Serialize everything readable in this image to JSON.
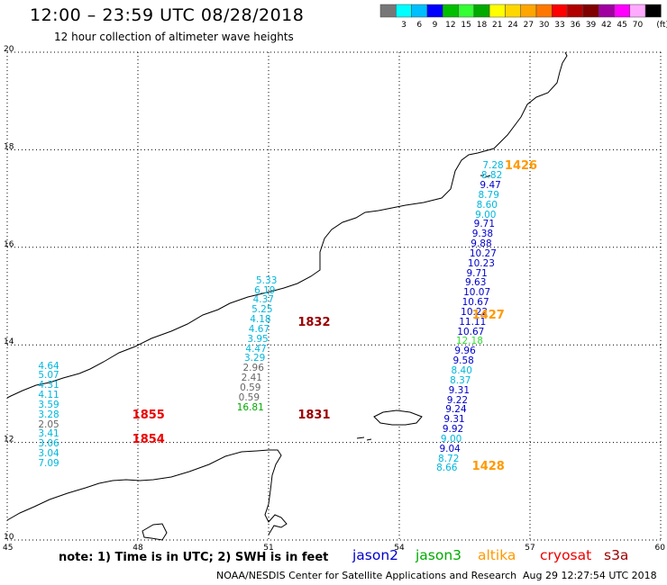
{
  "header": {
    "title": "12:00 – 23:59 UTC 08/28/2018",
    "subtitle": "12 hour collection of altimeter wave heights"
  },
  "scale": {
    "unit": "(ft)",
    "bins": [
      {
        "label": "",
        "color": "#777777"
      },
      {
        "label": "3",
        "color": "#00ffff"
      },
      {
        "label": "6",
        "color": "#00bfff"
      },
      {
        "label": "9",
        "color": "#0000ff"
      },
      {
        "label": "12",
        "color": "#00bf00"
      },
      {
        "label": "15",
        "color": "#33ff33"
      },
      {
        "label": "18",
        "color": "#00aa00"
      },
      {
        "label": "21",
        "color": "#ffff00"
      },
      {
        "label": "24",
        "color": "#ffd700"
      },
      {
        "label": "27",
        "color": "#ffa500"
      },
      {
        "label": "30",
        "color": "#ff7700"
      },
      {
        "label": "33",
        "color": "#ff0000"
      },
      {
        "label": "36",
        "color": "#b00000"
      },
      {
        "label": "39",
        "color": "#800000"
      },
      {
        "label": "42",
        "color": "#a000a0"
      },
      {
        "label": "45",
        "color": "#ff00ff"
      },
      {
        "label": "70",
        "color": "#ffaaff"
      },
      {
        "label": "",
        "color": "#000000"
      }
    ]
  },
  "map": {
    "lon_range": [
      45,
      60
    ],
    "lat_range": [
      10,
      20
    ],
    "x_ticks": [
      "45",
      "48",
      "51",
      "54",
      "57",
      "60"
    ],
    "y_ticks": [
      "20",
      "18",
      "16",
      "14",
      "12",
      "10"
    ]
  },
  "colors": {
    "jason2": "#0000cc",
    "jason3": "#00aa00",
    "altika": "#ff9900",
    "cryosat": "#ee0000",
    "s3a": "#990000",
    "gray": "#666666",
    "cyan": "#00b7dd",
    "lightgreen": "#33dd33",
    "black": "#000000"
  },
  "wave_heights": [
    {
      "text": "7.28",
      "c": "cyan",
      "lon": 56.2,
      "lat": 17.65
    },
    {
      "text": "8.82",
      "c": "cyan",
      "lon": 56.17,
      "lat": 17.45
    },
    {
      "text": "9.47",
      "c": "jason2",
      "lon": 56.14,
      "lat": 17.25
    },
    {
      "text": "8.79",
      "c": "cyan",
      "lon": 56.1,
      "lat": 17.05
    },
    {
      "text": "8.60",
      "c": "cyan",
      "lon": 56.06,
      "lat": 16.85
    },
    {
      "text": "9.00",
      "c": "cyan",
      "lon": 56.03,
      "lat": 16.65
    },
    {
      "text": "9.71",
      "c": "jason2",
      "lon": 56.0,
      "lat": 16.45
    },
    {
      "text": "9.38",
      "c": "jason2",
      "lon": 55.96,
      "lat": 16.25
    },
    {
      "text": "9.88",
      "c": "jason2",
      "lon": 55.93,
      "lat": 16.05
    },
    {
      "text": "10.27",
      "c": "jason2",
      "lon": 55.9,
      "lat": 15.85
    },
    {
      "text": "10.23",
      "c": "jason2",
      "lon": 55.86,
      "lat": 15.65
    },
    {
      "text": "9.71",
      "c": "jason2",
      "lon": 55.83,
      "lat": 15.45
    },
    {
      "text": "9.63",
      "c": "jason2",
      "lon": 55.8,
      "lat": 15.25
    },
    {
      "text": "10.07",
      "c": "jason2",
      "lon": 55.76,
      "lat": 15.05
    },
    {
      "text": "10.67",
      "c": "jason2",
      "lon": 55.73,
      "lat": 14.85
    },
    {
      "text": "10.22",
      "c": "jason2",
      "lon": 55.7,
      "lat": 14.65
    },
    {
      "text": "11.11",
      "c": "jason2",
      "lon": 55.66,
      "lat": 14.45
    },
    {
      "text": "10.67",
      "c": "jason2",
      "lon": 55.62,
      "lat": 14.25
    },
    {
      "text": "12.18",
      "c": "lightgreen",
      "lon": 55.59,
      "lat": 14.05
    },
    {
      "text": "9.96",
      "c": "jason2",
      "lon": 55.56,
      "lat": 13.85
    },
    {
      "text": "9.58",
      "c": "jason2",
      "lon": 55.52,
      "lat": 13.65
    },
    {
      "text": "8.40",
      "c": "cyan",
      "lon": 55.48,
      "lat": 13.45
    },
    {
      "text": "8.37",
      "c": "cyan",
      "lon": 55.45,
      "lat": 13.25
    },
    {
      "text": "9.31",
      "c": "jason2",
      "lon": 55.42,
      "lat": 13.05
    },
    {
      "text": "9.22",
      "c": "jason2",
      "lon": 55.38,
      "lat": 12.85
    },
    {
      "text": "9.24",
      "c": "jason2",
      "lon": 55.35,
      "lat": 12.65
    },
    {
      "text": "9.31",
      "c": "jason2",
      "lon": 55.31,
      "lat": 12.45
    },
    {
      "text": "9.92",
      "c": "jason2",
      "lon": 55.28,
      "lat": 12.25
    },
    {
      "text": "9.00",
      "c": "cyan",
      "lon": 55.24,
      "lat": 12.05
    },
    {
      "text": "9.04",
      "c": "jason2",
      "lon": 55.21,
      "lat": 11.85
    },
    {
      "text": "8.72",
      "c": "cyan",
      "lon": 55.18,
      "lat": 11.65
    },
    {
      "text": "8.66",
      "c": "cyan",
      "lon": 55.14,
      "lat": 11.45
    },
    {
      "text": "5.33",
      "c": "cyan",
      "lon": 51.0,
      "lat": 15.3
    },
    {
      "text": "6.19",
      "c": "cyan",
      "lon": 50.96,
      "lat": 15.1
    },
    {
      "text": "4.37",
      "c": "cyan",
      "lon": 50.93,
      "lat": 14.9
    },
    {
      "text": "5.25",
      "c": "cyan",
      "lon": 50.9,
      "lat": 14.7
    },
    {
      "text": "4.18",
      "c": "cyan",
      "lon": 50.86,
      "lat": 14.5
    },
    {
      "text": "4.67",
      "c": "cyan",
      "lon": 50.83,
      "lat": 14.3
    },
    {
      "text": "3.95",
      "c": "cyan",
      "lon": 50.8,
      "lat": 14.1
    },
    {
      "text": "4.47",
      "c": "cyan",
      "lon": 50.76,
      "lat": 13.9
    },
    {
      "text": "3.29",
      "c": "cyan",
      "lon": 50.73,
      "lat": 13.7
    },
    {
      "text": "2.96",
      "c": "gray",
      "lon": 50.7,
      "lat": 13.5
    },
    {
      "text": "2.41",
      "c": "gray",
      "lon": 50.66,
      "lat": 13.3
    },
    {
      "text": "0.59",
      "c": "gray",
      "lon": 50.63,
      "lat": 13.1
    },
    {
      "text": "0.59",
      "c": "gray",
      "lon": 50.6,
      "lat": 12.9
    },
    {
      "text": "16.81",
      "c": "jason3",
      "lon": 50.56,
      "lat": 12.7
    },
    {
      "text": "4.64",
      "c": "cyan",
      "lon": 46.0,
      "lat": 13.55
    },
    {
      "text": "5.07",
      "c": "cyan",
      "lon": 46.0,
      "lat": 13.35
    },
    {
      "text": "4.31",
      "c": "cyan",
      "lon": 46.0,
      "lat": 13.15
    },
    {
      "text": "4.11",
      "c": "cyan",
      "lon": 46.0,
      "lat": 12.95
    },
    {
      "text": "3.59",
      "c": "cyan",
      "lon": 46.0,
      "lat": 12.75
    },
    {
      "text": "3.28",
      "c": "cyan",
      "lon": 46.0,
      "lat": 12.55
    },
    {
      "text": "2.05",
      "c": "gray",
      "lon": 46.0,
      "lat": 12.35
    },
    {
      "text": "3.41",
      "c": "cyan",
      "lon": 46.0,
      "lat": 12.15
    },
    {
      "text": "3.06",
      "c": "cyan",
      "lon": 46.0,
      "lat": 11.95
    },
    {
      "text": "3.04",
      "c": "cyan",
      "lon": 46.0,
      "lat": 11.75
    },
    {
      "text": "7.09",
      "c": "cyan",
      "lon": 46.0,
      "lat": 11.55
    }
  ],
  "pass_times": [
    {
      "text": "1426",
      "c": "altika",
      "lon": 56.75,
      "lat": 17.65
    },
    {
      "text": "1427",
      "c": "altika",
      "lon": 56.0,
      "lat": 14.6
    },
    {
      "text": "1428",
      "c": "altika",
      "lon": 56.0,
      "lat": 11.5
    },
    {
      "text": "1832",
      "c": "s3a",
      "lon": 52.0,
      "lat": 14.45
    },
    {
      "text": "1831",
      "c": "s3a",
      "lon": 52.0,
      "lat": 12.55
    },
    {
      "text": "1855",
      "c": "cryosat",
      "lon": 48.2,
      "lat": 12.55
    },
    {
      "text": "1854",
      "c": "cryosat",
      "lon": 48.2,
      "lat": 12.05
    }
  ],
  "footer": {
    "note": "note:  1) Time is in UTC;  2) SWH is in feet",
    "satellites": [
      {
        "label": "jason2",
        "c": "jason2"
      },
      {
        "label": "jason3",
        "c": "jason3"
      },
      {
        "label": "altika",
        "c": "altika"
      },
      {
        "label": "cryosat",
        "c": "cryosat"
      },
      {
        "label": "s3a",
        "c": "s3a"
      }
    ],
    "credit": "NOAA/NESDIS Center for Satellite Applications and Research",
    "timestamp": "Aug 29 12:27:54 UTC 2018"
  }
}
